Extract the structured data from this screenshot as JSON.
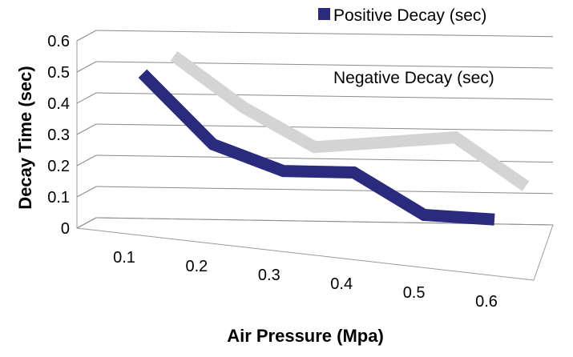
{
  "chart_data": {
    "type": "line",
    "title": "",
    "xlabel": "Air Pressure (Mpa)",
    "ylabel": "Decay Time (sec)",
    "categories": [
      "0.1",
      "0.2",
      "0.3",
      "0.4",
      "0.5",
      "0.6"
    ],
    "ylim": [
      0,
      0.6
    ],
    "yticks": [
      "0",
      "0.1",
      "0.2",
      "0.3",
      "0.4",
      "0.5",
      "0.6"
    ],
    "grid": true,
    "legend_position": "top-right",
    "series": [
      {
        "name": "Positive Decay (sec)",
        "color": "#2a2a7e",
        "values": [
          0.48,
          0.26,
          0.18,
          0.18,
          0.05,
          0.04
        ]
      },
      {
        "name": "Negative Decay (sec)",
        "color": "#d4d4d4",
        "values": [
          0.48,
          0.32,
          0.2,
          0.22,
          0.24,
          0.09
        ]
      }
    ]
  }
}
